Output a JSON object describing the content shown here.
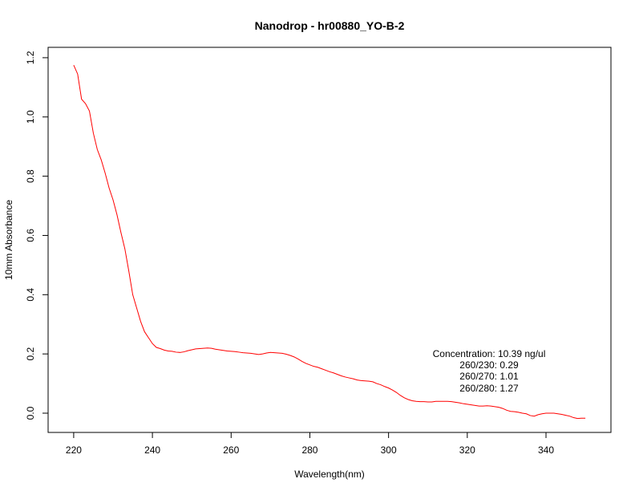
{
  "chart_data": {
    "type": "line",
    "title": "Nanodrop - hr00880_YO-B-2",
    "xlabel": "Wavelength(nm)",
    "ylabel": "10mm Absorbance",
    "xlim": [
      213.5,
      356.5
    ],
    "ylim": [
      -0.065,
      1.235
    ],
    "x_ticks": [
      220,
      240,
      260,
      280,
      300,
      320,
      340
    ],
    "y_ticks": [
      0.0,
      0.2,
      0.4,
      0.6,
      0.8,
      1.0,
      1.2
    ],
    "x_tick_labels": [
      "220",
      "240",
      "260",
      "280",
      "300",
      "320",
      "340"
    ],
    "y_tick_labels": [
      "0.0",
      "0.2",
      "0.4",
      "0.6",
      "0.8",
      "1.0",
      "1.2"
    ],
    "grid": false,
    "line_color": "#ff0000",
    "series": [
      {
        "x": [
          220,
          221,
          222,
          223,
          224,
          225,
          226,
          227,
          228,
          229,
          230,
          231,
          232,
          233,
          234,
          235,
          236,
          237,
          238,
          239,
          240,
          241,
          242,
          243,
          244,
          245,
          246,
          247,
          248,
          249,
          250,
          251,
          252,
          253,
          254,
          255,
          256,
          257,
          258,
          259,
          260,
          261,
          262,
          263,
          264,
          265,
          266,
          267,
          268,
          269,
          270,
          271,
          272,
          273,
          274,
          275,
          276,
          277,
          278,
          279,
          280,
          281,
          282,
          283,
          284,
          285,
          286,
          287,
          288,
          289,
          290,
          291,
          292,
          293,
          294,
          295,
          296,
          297,
          298,
          299,
          300,
          301,
          302,
          303,
          304,
          305,
          306,
          307,
          308,
          309,
          310,
          311,
          312,
          313,
          314,
          315,
          316,
          317,
          318,
          319,
          320,
          321,
          322,
          323,
          324,
          325,
          326,
          327,
          328,
          329,
          330,
          331,
          332,
          333,
          334,
          335,
          336,
          337,
          338,
          339,
          340,
          341,
          342,
          343,
          344,
          345,
          346,
          347,
          348,
          349,
          350
        ],
        "y": [
          1.175,
          1.145,
          1.06,
          1.045,
          1.02,
          0.945,
          0.89,
          0.855,
          0.81,
          0.76,
          0.72,
          0.67,
          0.61,
          0.555,
          0.48,
          0.4,
          0.355,
          0.31,
          0.275,
          0.255,
          0.235,
          0.222,
          0.218,
          0.213,
          0.21,
          0.209,
          0.206,
          0.205,
          0.207,
          0.211,
          0.214,
          0.217,
          0.218,
          0.219,
          0.22,
          0.219,
          0.216,
          0.214,
          0.212,
          0.21,
          0.209,
          0.208,
          0.206,
          0.204,
          0.203,
          0.202,
          0.2,
          0.198,
          0.2,
          0.203,
          0.205,
          0.204,
          0.203,
          0.202,
          0.199,
          0.195,
          0.19,
          0.183,
          0.175,
          0.168,
          0.163,
          0.158,
          0.155,
          0.15,
          0.145,
          0.14,
          0.136,
          0.131,
          0.126,
          0.122,
          0.119,
          0.116,
          0.112,
          0.11,
          0.109,
          0.108,
          0.106,
          0.1,
          0.096,
          0.09,
          0.085,
          0.078,
          0.07,
          0.06,
          0.052,
          0.046,
          0.042,
          0.04,
          0.039,
          0.039,
          0.038,
          0.038,
          0.04,
          0.04,
          0.04,
          0.04,
          0.039,
          0.037,
          0.035,
          0.032,
          0.03,
          0.028,
          0.026,
          0.024,
          0.024,
          0.025,
          0.024,
          0.022,
          0.02,
          0.016,
          0.01,
          0.006,
          0.005,
          0.003,
          0.0,
          -0.002,
          -0.008,
          -0.01,
          -0.005,
          -0.002,
          0.0,
          0.0,
          0.0,
          -0.002,
          -0.004,
          -0.007,
          -0.01,
          -0.015,
          -0.018,
          -0.017,
          -0.017
        ]
      }
    ],
    "annotations": {
      "concentration": "Concentration: 10.39 ng/ul",
      "r230": "260/230: 0.29",
      "r270": "260/270: 1.01",
      "r280": "260/280: 1.27"
    }
  }
}
